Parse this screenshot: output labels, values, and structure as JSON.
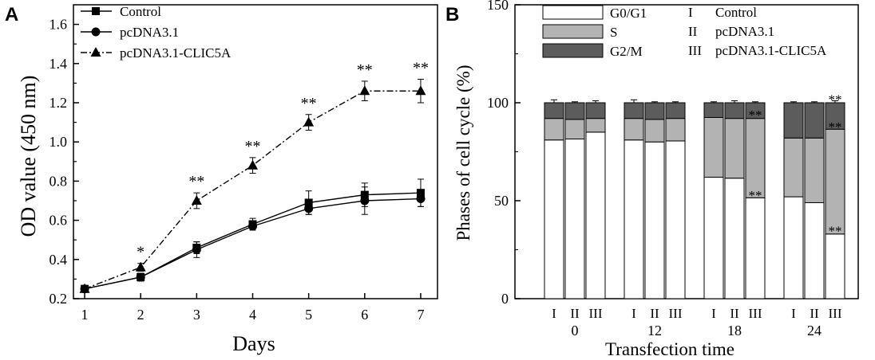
{
  "chart_data": [
    {
      "type": "line",
      "panel_label": "A",
      "xlabel": "Days",
      "ylabel": "OD value (450 nm)",
      "xlim": [
        0.8,
        7.3
      ],
      "ylim": [
        0.2,
        1.7
      ],
      "x_ticks": [
        "1",
        "2",
        "3",
        "4",
        "5",
        "6",
        "7"
      ],
      "y_ticks": [
        "0.2",
        "0.4",
        "0.6",
        "0.8",
        "1.0",
        "1.2",
        "1.4",
        "1.6"
      ],
      "legend_position": "top-left",
      "x": [
        1,
        2,
        3,
        4,
        5,
        6,
        7
      ],
      "series": [
        {
          "name": "Control",
          "marker": "square",
          "dash": "solid",
          "values": [
            0.25,
            0.31,
            0.46,
            0.58,
            0.69,
            0.73,
            0.74
          ],
          "errors": [
            0.01,
            0.02,
            0.03,
            0.03,
            0.06,
            0.06,
            0.07
          ]
        },
        {
          "name": "pcDNA3.1",
          "marker": "circle",
          "dash": "solid",
          "values": [
            0.25,
            0.31,
            0.45,
            0.57,
            0.66,
            0.7,
            0.71
          ],
          "errors": [
            0.01,
            0.02,
            0.04,
            0.02,
            0.03,
            0.07,
            0.04
          ]
        },
        {
          "name": "pcDNA3.1-CLIC5A",
          "marker": "triangle",
          "dash": "dashdot",
          "values": [
            0.25,
            0.36,
            0.7,
            0.88,
            1.1,
            1.26,
            1.26
          ],
          "errors": [
            0.01,
            0.02,
            0.04,
            0.04,
            0.04,
            0.05,
            0.06
          ]
        }
      ],
      "annotations": [
        {
          "x": 2,
          "text": "*"
        },
        {
          "x": 3,
          "text": "**"
        },
        {
          "x": 4,
          "text": "**"
        },
        {
          "x": 5,
          "text": "**"
        },
        {
          "x": 6,
          "text": "**"
        },
        {
          "x": 7,
          "text": "**"
        }
      ]
    },
    {
      "type": "bar",
      "stacked": true,
      "panel_label": "B",
      "xlabel": "Transfection time",
      "ylabel": "Phases of cell cycle (%)",
      "ylim": [
        0,
        150
      ],
      "y_ticks": [
        "0",
        "50",
        "100",
        "150"
      ],
      "group_labels": [
        "0",
        "12",
        "18",
        "24"
      ],
      "bar_labels": [
        "I",
        "II",
        "III"
      ],
      "legend_position": "top-left",
      "series": [
        {
          "name": "G0/G1",
          "color": "#ffffff",
          "values": [
            [
              81,
              81.5,
              85
            ],
            [
              81,
              80,
              80.5
            ],
            [
              62,
              61.5,
              51.5
            ],
            [
              52,
              49,
              33
            ]
          ],
          "errors": [
            [
              1,
              0.5,
              0.5
            ],
            [
              0.5,
              1,
              1
            ],
            [
              3,
              0.5,
              0.5
            ],
            [
              0.5,
              3,
              1.5
            ]
          ]
        },
        {
          "name": "S",
          "color": "#b3b3b3",
          "values": [
            [
              11,
              10,
              7
            ],
            [
              11,
              11.5,
              11.5
            ],
            [
              30.5,
              30.5,
              40.5
            ],
            [
              30,
              33,
              53.5
            ]
          ],
          "errors": [
            [
              0,
              0,
              0
            ],
            [
              0,
              0,
              0
            ],
            [
              0,
              0,
              0
            ],
            [
              0,
              0,
              3
            ]
          ]
        },
        {
          "name": "G2/M",
          "color": "#5c5c5c",
          "values": [
            [
              8,
              8.5,
              8
            ],
            [
              8,
              8.5,
              8
            ],
            [
              7.5,
              8,
              8
            ],
            [
              18,
              18,
              13.5
            ]
          ],
          "errors": [
            [
              1.5,
              0.5,
              1
            ],
            [
              1.5,
              0.5,
              0.5
            ],
            [
              0.5,
              1,
              0.5
            ],
            [
              0.5,
              0.5,
              1
            ]
          ]
        }
      ],
      "annotations": [
        {
          "group": 2,
          "bar": 2,
          "y": 93,
          "text": "**"
        },
        {
          "group": 2,
          "bar": 2,
          "y": 52,
          "text": "**"
        },
        {
          "group": 3,
          "bar": 2,
          "y": 101,
          "text": "**"
        },
        {
          "group": 3,
          "bar": 2,
          "y": 87,
          "text": "**"
        },
        {
          "group": 3,
          "bar": 2,
          "y": 34,
          "text": "**"
        }
      ],
      "roman_legend": [
        {
          "numeral": "I",
          "label": "Control"
        },
        {
          "numeral": "II",
          "label": "pcDNA3.1"
        },
        {
          "numeral": "III",
          "label": "pcDNA3.1-CLIC5A"
        }
      ]
    }
  ]
}
